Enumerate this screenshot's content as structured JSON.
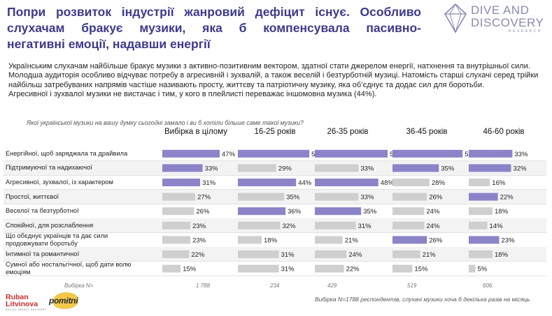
{
  "headline": [
    "Попри розвиток індустрії жанровий дефіцит існує. Особливо",
    "слухачам бракує музики, яка б компенсувала пасивно-",
    "негативні емоції, надавши енергії"
  ],
  "logo": {
    "line1": "DIVE AND",
    "line2": "DISCOVERY",
    "sub": "RESEARCH",
    "icon": "diamond-icon",
    "color": "#8a8ab4"
  },
  "body_paragraphs": [
    "Українським слухачам найбільше бракує музики з активно-позитивним вектором, здатної стати джерелом енергії, натхнення та внутрішньої сили.",
    "Молодша аудиторія особливо відчуває потребу в агресивній і зухвалій, а також веселій і безтурботній музиці. Натомість старші слухачі серед трійки найбільш затребуваних напрямів частіше називають просту, життєву та патріотичну музику, яка об’єднує та додає сил для боротьби.",
    "Агресивної і зухвалої музики не вистачає і тим, у кого в плейлисті переважає іншомовна музика (44%)."
  ],
  "question": "Якої української музики на вашу думку сьогодні замало і ви б хотіли більше саме такої музики?",
  "colors": {
    "headline": "#3d3a8c",
    "bar_highlight": "#8b84c9",
    "bar_normal": "#cfcfcf",
    "row_alt": "#f3f3f3"
  },
  "chart_data": {
    "type": "bar",
    "orientation": "horizontal",
    "unit": "%",
    "categories": [
      "Енергійної, щоб заряджала та драйвила",
      "Підтримуючої та надихаючої",
      "Агресивної, зухвалої, із характером",
      "Простої, життєвої",
      "Веселої та безтурботної",
      "Спокійної, для розслаблення",
      "Що обєднує українців та дає сили продовжувати боротьбу",
      "Інтимної та романтичної",
      "Сумної або ностальгічної, щоб дати волю емоціям"
    ],
    "series": [
      {
        "name": "Вибірка в цілому",
        "base": "1 788",
        "values": [
          47,
          33,
          31,
          27,
          26,
          23,
          23,
          22,
          15
        ],
        "highlight": [
          true,
          true,
          true,
          false,
          false,
          false,
          false,
          false,
          false
        ]
      },
      {
        "name": "16-25 років",
        "base": "234",
        "values": [
          54,
          29,
          44,
          35,
          36,
          32,
          18,
          31,
          31
        ],
        "highlight": [
          true,
          false,
          true,
          false,
          true,
          false,
          false,
          false,
          false
        ]
      },
      {
        "name": "26-35 років",
        "base": "429",
        "values": [
          55,
          33,
          48,
          33,
          35,
          31,
          21,
          24,
          22
        ],
        "highlight": [
          true,
          false,
          true,
          false,
          true,
          false,
          false,
          false,
          false
        ]
      },
      {
        "name": "36-45 років",
        "base": "519",
        "values": [
          53,
          35,
          28,
          26,
          24,
          24,
          26,
          21,
          15
        ],
        "highlight": [
          true,
          true,
          false,
          false,
          false,
          false,
          true,
          false,
          false
        ]
      },
      {
        "name": "46-60 років",
        "base": "606",
        "values": [
          33,
          32,
          16,
          22,
          18,
          14,
          23,
          18,
          5
        ],
        "highlight": [
          true,
          true,
          false,
          true,
          false,
          false,
          true,
          false,
          false
        ]
      }
    ],
    "base_label": "Вибірка N=",
    "xlim": [
      0,
      55
    ]
  },
  "footer_note": "Вибірка N=1788 респондентів, слухачі музики хоча б декілька разів на місяць",
  "partners": {
    "rl_line1": "Ruban",
    "rl_line2": "Litvinova",
    "rl_sub": "SOCIAL IMPACT ADVISORY",
    "pomitni": "pomitni"
  }
}
